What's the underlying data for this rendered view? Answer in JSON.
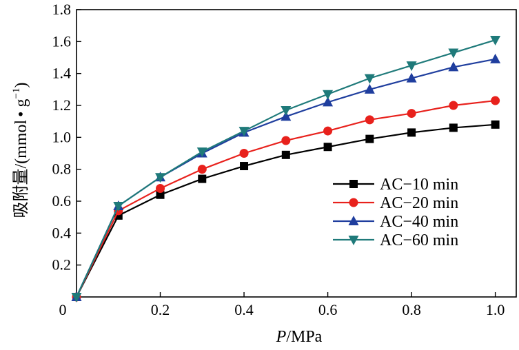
{
  "chart_data": {
    "type": "line",
    "title": "",
    "xlabel_italic": "P",
    "xlabel_unit": "/MPa",
    "ylabel_main": "吸附量/(mmol",
    "ylabel_dot": "•",
    "ylabel_g": " g",
    "ylabel_sup": "−1",
    "ylabel_close": ")",
    "xlim": [
      0,
      1.05
    ],
    "ylim": [
      0,
      1.8
    ],
    "xticks": [
      0,
      0.2,
      0.4,
      0.6,
      0.8,
      1.0
    ],
    "xtick_labels": [
      "0",
      "0.2",
      "0.4",
      "0.6",
      "0.8",
      "1.0"
    ],
    "yticks": [
      0.2,
      0.4,
      0.6,
      0.8,
      1.0,
      1.2,
      1.4,
      1.6,
      1.8
    ],
    "ytick_labels": [
      "0.2",
      "0.4",
      "0.6",
      "0.8",
      "1.0",
      "1.2",
      "1.4",
      "1.6",
      "1.8"
    ],
    "grid": false,
    "legend_position": "center-right",
    "x": [
      0.0,
      0.1,
      0.2,
      0.3,
      0.4,
      0.5,
      0.6,
      0.7,
      0.8,
      0.9,
      1.0
    ],
    "series": [
      {
        "name": "AC−10 min",
        "color": "#000000",
        "marker": "square",
        "values": [
          0.0,
          0.51,
          0.64,
          0.74,
          0.82,
          0.89,
          0.94,
          0.99,
          1.03,
          1.06,
          1.08
        ]
      },
      {
        "name": "AC−20 min",
        "color": "#e8211c",
        "marker": "circle",
        "values": [
          0.0,
          0.54,
          0.68,
          0.8,
          0.9,
          0.98,
          1.04,
          1.11,
          1.15,
          1.2,
          1.23
        ]
      },
      {
        "name": "AC−40 min",
        "color": "#1f3e9e",
        "marker": "triangle-up",
        "values": [
          0.0,
          0.57,
          0.75,
          0.9,
          1.03,
          1.13,
          1.22,
          1.3,
          1.37,
          1.44,
          1.49
        ]
      },
      {
        "name": "AC−60 min",
        "color": "#1f7a7a",
        "marker": "triangle-down",
        "values": [
          0.0,
          0.57,
          0.75,
          0.91,
          1.04,
          1.17,
          1.27,
          1.37,
          1.45,
          1.53,
          1.61
        ]
      }
    ]
  }
}
